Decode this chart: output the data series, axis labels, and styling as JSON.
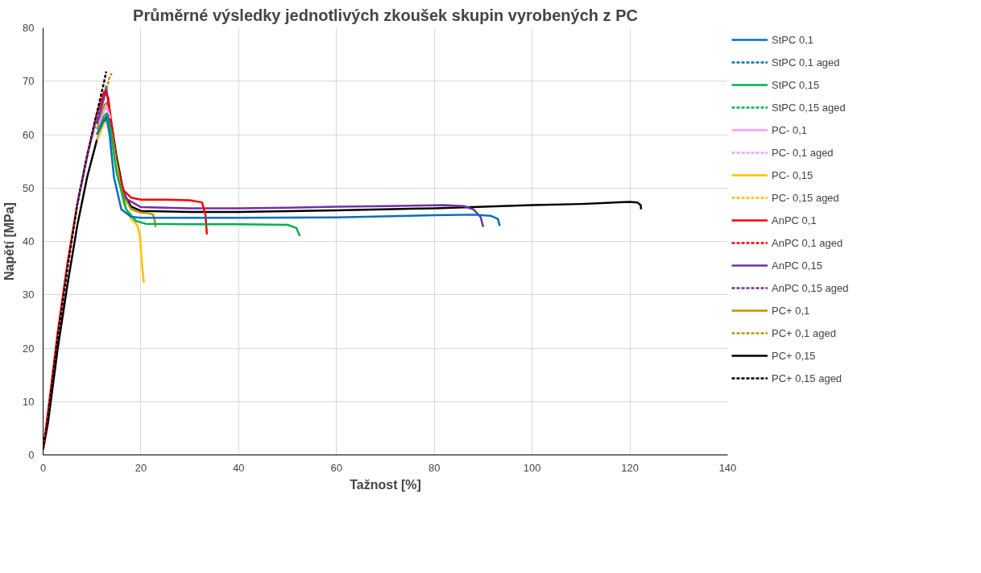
{
  "chart_data": {
    "type": "line",
    "title": "Průměrné výsledky jednotlivých zkoušek skupin vyrobených z PC",
    "xlabel": "Tažnost [%]",
    "ylabel": "Napětí [MPa]",
    "xlim": [
      0,
      140
    ],
    "ylim": [
      0,
      80
    ],
    "xticks": [
      0,
      20,
      40,
      60,
      80,
      100,
      120,
      140
    ],
    "yticks": [
      0,
      10,
      20,
      30,
      40,
      50,
      60,
      70,
      80
    ],
    "grid": true,
    "legend": "right",
    "marker": "none",
    "series": [
      {
        "name": "StPC 0,1",
        "color": "#0070c0",
        "line_style": "solid",
        "x": [
          11,
          12.5,
          13,
          13.6,
          14.5,
          16,
          18,
          20,
          40,
          60,
          80,
          88,
          91.5,
          93,
          93.4
        ],
        "values": [
          60,
          62.8,
          63,
          60,
          52,
          46,
          44.6,
          44.4,
          44.4,
          44.5,
          44.9,
          45,
          44.8,
          44.2,
          42.9
        ]
      },
      {
        "name": "StPC 0,1 aged",
        "color": "#0070c0",
        "line_style": "dashed"
      },
      {
        "name": "StPC 0,15",
        "color": "#00b050",
        "line_style": "solid",
        "x": [
          11,
          12.5,
          13,
          13.8,
          15,
          17,
          19,
          21,
          30,
          40,
          50,
          51.8,
          52.5
        ],
        "values": [
          60,
          63.5,
          64,
          61,
          53,
          46,
          43.8,
          43.3,
          43.2,
          43.2,
          43.1,
          42.5,
          41
        ]
      },
      {
        "name": "StPC 0,15 aged",
        "color": "#00b050",
        "line_style": "dashed"
      },
      {
        "name": "PC- 0,1",
        "color": "#ff99ff",
        "line_style": "solid",
        "x": [
          11.5,
          12.5,
          13,
          13.8
        ],
        "values": [
          62,
          64.5,
          65.3,
          63
        ]
      },
      {
        "name": "PC- 0,1 aged",
        "color": "#ff99ff",
        "line_style": "dashed"
      },
      {
        "name": "PC- 0,15",
        "color": "#ffc000",
        "line_style": "solid",
        "x": [
          11,
          12.5,
          13.2,
          14,
          15,
          16.5,
          18,
          19.3,
          19.8,
          20.2,
          20.6
        ],
        "values": [
          59,
          62.2,
          62.5,
          60,
          54,
          47,
          44.2,
          43,
          41,
          36,
          32.3
        ]
      },
      {
        "name": "PC- 0,15 aged",
        "color": "#ffc000",
        "line_style": "dashed"
      },
      {
        "name": "AnPC 0,1",
        "color": "#ff0000",
        "line_style": "solid",
        "x": [
          0,
          1,
          3,
          5,
          7,
          9,
          11,
          12.5,
          13.3,
          14,
          15,
          16.5,
          18,
          20,
          25,
          30,
          32.5,
          33.2,
          33.5
        ],
        "values": [
          1,
          8,
          23,
          36,
          47,
          56,
          64,
          68,
          67,
          62,
          54,
          49.5,
          48.2,
          47.8,
          47.8,
          47.7,
          47.3,
          45,
          41.3
        ]
      },
      {
        "name": "AnPC 0,1 aged",
        "color": "#ff0000",
        "line_style": "dashed"
      },
      {
        "name": "AnPC 0,15",
        "color": "#7030a0",
        "line_style": "solid",
        "x": [
          11,
          12.5,
          12.9,
          13.6,
          15,
          17,
          20,
          30,
          40,
          50,
          60,
          70,
          82,
          86,
          88,
          89.5,
          90
        ],
        "values": [
          62,
          67,
          69,
          64,
          54,
          48,
          46.4,
          46.2,
          46.2,
          46.3,
          46.5,
          46.6,
          46.8,
          46.6,
          46,
          44.5,
          42.7
        ]
      },
      {
        "name": "AnPC 0,15 aged",
        "color": "#7030a0",
        "line_style": "dashed",
        "x": [
          7,
          9,
          11,
          12.5
        ],
        "values": [
          47,
          56,
          63,
          67
        ]
      },
      {
        "name": "PC+ 0,1",
        "color": "#bf9000",
        "line_style": "solid",
        "x": [
          11,
          12.5,
          13,
          13.8,
          15,
          16.5,
          18,
          20,
          21.5,
          22.5,
          22.8,
          23
        ],
        "values": [
          61,
          65.5,
          66,
          63,
          55,
          48.5,
          46,
          45.4,
          45.3,
          45,
          44,
          42.7
        ]
      },
      {
        "name": "PC+ 0,1 aged",
        "color": "#bf9000",
        "line_style": "dashed",
        "x": [
          13,
          13.5,
          14
        ],
        "values": [
          68.5,
          70.5,
          71.5
        ]
      },
      {
        "name": "PC+ 0,15",
        "color": "#000000",
        "line_style": "solid",
        "x": [
          0,
          1,
          3,
          5,
          7,
          9,
          11,
          12.5,
          13.3,
          14,
          15,
          16.5,
          18,
          20,
          30,
          40,
          60,
          80,
          90,
          100,
          110,
          120,
          121.5,
          122.2,
          122.3
        ],
        "values": [
          1,
          6,
          20,
          32,
          43,
          52,
          59,
          62.5,
          63.8,
          62,
          56,
          49,
          46.5,
          45.7,
          45.5,
          45.5,
          45.8,
          46.2,
          46.5,
          46.8,
          47,
          47.4,
          47.3,
          46.8,
          46
        ]
      },
      {
        "name": "PC+ 0,15 aged",
        "color": "#000000",
        "line_style": "dashed",
        "x": [
          0,
          1,
          3,
          5,
          7,
          9,
          11,
          12.5,
          12.9
        ],
        "values": [
          1,
          7,
          22,
          35,
          47,
          56,
          64,
          70,
          71.8
        ]
      }
    ]
  }
}
